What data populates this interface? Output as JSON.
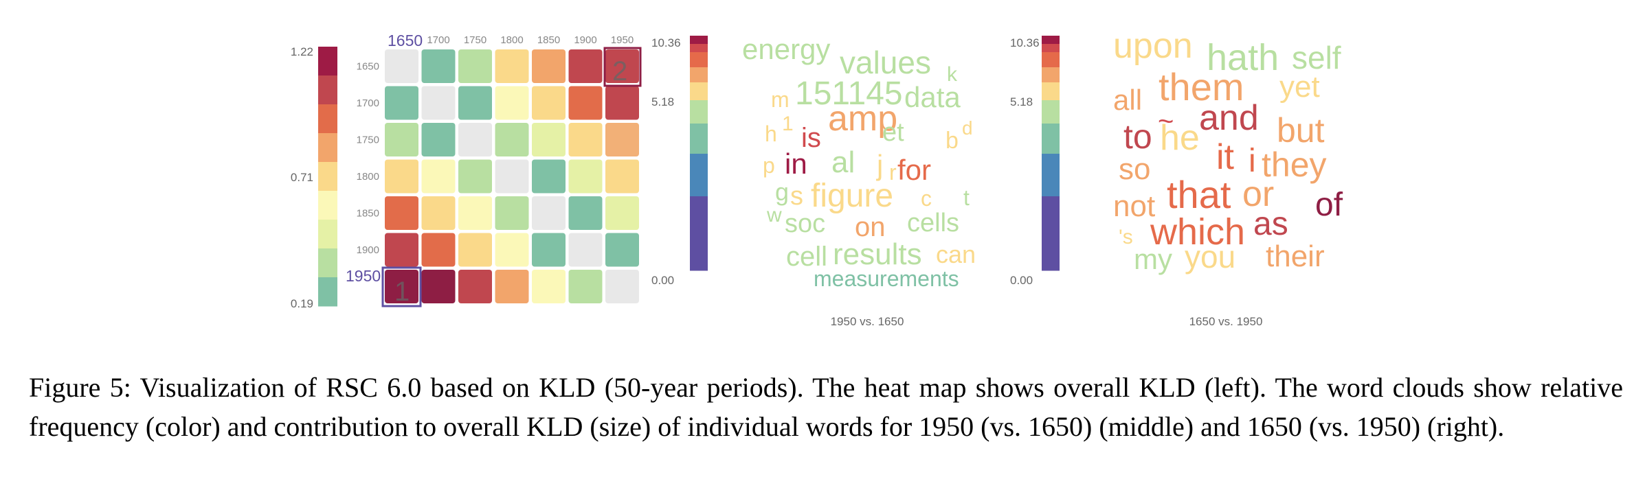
{
  "figure": {
    "heatmap": {
      "periods": [
        "1650",
        "1700",
        "1750",
        "1800",
        "1850",
        "1900",
        "1950"
      ],
      "corner_labels": {
        "top": "1650",
        "left": "1950"
      },
      "marks": [
        "1",
        "2"
      ],
      "legend": {
        "ticks": [
          "1.22",
          "0.71",
          "0.19"
        ],
        "colors": [
          "#9e1b45",
          "#c0474f",
          "#e26c4a",
          "#f2a56b",
          "#fad98a",
          "#fbf8b8",
          "#e5f1a6",
          "#b8dfa1",
          "#7fc1a5"
        ]
      },
      "cell_colors": [
        [
          "#e8e8e8",
          "#7fc1a5",
          "#b8dfa1",
          "#fad98a",
          "#f2a56b",
          "#c0474f",
          "#c0474f"
        ],
        [
          "#7fc1a5",
          "#e8e8e8",
          "#7fc1a5",
          "#fbf8b8",
          "#fad98a",
          "#e26c4a",
          "#c0474f"
        ],
        [
          "#b8dfa1",
          "#7fc1a5",
          "#e8e8e8",
          "#b8dfa1",
          "#e5f1a6",
          "#fad98a",
          "#f2b077"
        ],
        [
          "#fad98a",
          "#fbf8b8",
          "#b8dfa1",
          "#e8e8e8",
          "#7fc1a5",
          "#e5f1a6",
          "#fad98a"
        ],
        [
          "#e26c4a",
          "#fad98a",
          "#fbf8b8",
          "#b8dfa1",
          "#e8e8e8",
          "#7fc1a5",
          "#e5f1a6"
        ],
        [
          "#c0474f",
          "#e26c4a",
          "#fad98a",
          "#fbf8b8",
          "#7fc1a5",
          "#e8e8e8",
          "#7fc1a5"
        ],
        [
          "#8e1e44",
          "#8e1e44",
          "#c0474f",
          "#f2a56b",
          "#fbf8b8",
          "#b8dfa1",
          "#e8e8e8"
        ]
      ]
    },
    "word_legend": {
      "ticks": [
        "10.36",
        "5.18",
        "0.00"
      ],
      "colors": [
        "#9e1b45",
        "#d04a4e",
        "#e56a4a",
        "#f2a56b",
        "#fad98a",
        "#b8dfa1",
        "#7fc1a5",
        "#4a87b9",
        "#5e4fa2"
      ]
    },
    "cloud_1950": {
      "caption": "1950 vs. 1650",
      "words": [
        {
          "text": "energy",
          "color": "#b8dfa1"
        },
        {
          "text": "values",
          "color": "#b8dfa1"
        },
        {
          "text": "k",
          "color": "#b8dfa1"
        },
        {
          "text": "m",
          "color": "#fad98a"
        },
        {
          "text": "151145",
          "color": "#b8dfa1"
        },
        {
          "text": "data",
          "color": "#b8dfa1"
        },
        {
          "text": "h",
          "color": "#fad98a"
        },
        {
          "text": "1",
          "color": "#fad98a"
        },
        {
          "text": "is",
          "color": "#d04a4e"
        },
        {
          "text": "amp",
          "color": "#f2a56b"
        },
        {
          "text": "et",
          "color": "#b8dfa1"
        },
        {
          "text": "b",
          "color": "#fad98a"
        },
        {
          "text": "d",
          "color": "#fad98a"
        },
        {
          "text": "p",
          "color": "#fad98a"
        },
        {
          "text": "in",
          "color": "#9e1b45"
        },
        {
          "text": "al",
          "color": "#b8dfa1"
        },
        {
          "text": "j",
          "color": "#fad98a"
        },
        {
          "text": "r",
          "color": "#fad98a"
        },
        {
          "text": "for",
          "color": "#e56a4a"
        },
        {
          "text": "g",
          "color": "#b8dfa1"
        },
        {
          "text": "s",
          "color": "#fad98a"
        },
        {
          "text": "figure",
          "color": "#fad98a"
        },
        {
          "text": "c",
          "color": "#fad98a"
        },
        {
          "text": "t",
          "color": "#b8dfa1"
        },
        {
          "text": "w",
          "color": "#b8dfa1"
        },
        {
          "text": "soc",
          "color": "#b8dfa1"
        },
        {
          "text": "on",
          "color": "#f2a56b"
        },
        {
          "text": "cells",
          "color": "#b8dfa1"
        },
        {
          "text": "cell",
          "color": "#b8dfa1"
        },
        {
          "text": "results",
          "color": "#b8dfa1"
        },
        {
          "text": "can",
          "color": "#fad98a"
        },
        {
          "text": "measurements",
          "color": "#7fc1a5"
        }
      ]
    },
    "cloud_1650": {
      "caption": "1650 vs. 1950",
      "words": [
        {
          "text": "upon",
          "color": "#fad98a"
        },
        {
          "text": "hath",
          "color": "#b8dfa1"
        },
        {
          "text": "self",
          "color": "#b8dfa1"
        },
        {
          "text": "all",
          "color": "#f2a56b"
        },
        {
          "text": "them",
          "color": "#f2a56b"
        },
        {
          "text": "yet",
          "color": "#fad98a"
        },
        {
          "text": "~",
          "color": "#d04a4e"
        },
        {
          "text": "and",
          "color": "#c0474f"
        },
        {
          "text": "to",
          "color": "#c0474f"
        },
        {
          "text": "he",
          "color": "#fad98a"
        },
        {
          "text": "but",
          "color": "#f2a56b"
        },
        {
          "text": "it",
          "color": "#e56a4a"
        },
        {
          "text": "i",
          "color": "#e56a4a"
        },
        {
          "text": "they",
          "color": "#f2a56b"
        },
        {
          "text": "so",
          "color": "#f2a56b"
        },
        {
          "text": "not",
          "color": "#f2a56b"
        },
        {
          "text": "that",
          "color": "#e56a4a"
        },
        {
          "text": "or",
          "color": "#f2a56b"
        },
        {
          "text": "of",
          "color": "#8e1e44"
        },
        {
          "text": "'s",
          "color": "#fad98a"
        },
        {
          "text": "which",
          "color": "#e56a4a"
        },
        {
          "text": "as",
          "color": "#c0474f"
        },
        {
          "text": "my",
          "color": "#b8dfa1"
        },
        {
          "text": "you",
          "color": "#fad98a"
        },
        {
          "text": "their",
          "color": "#f2a56b"
        }
      ]
    }
  },
  "caption": "Figure 5: Visualization of RSC 6.0 based on KLD (50-year periods). The heat map shows overall KLD (left). The word clouds show relative frequency (color) and contribution to overall KLD (size) of individual words for 1950 (vs. 1650) (middle) and 1650 (vs. 1950) (right)."
}
